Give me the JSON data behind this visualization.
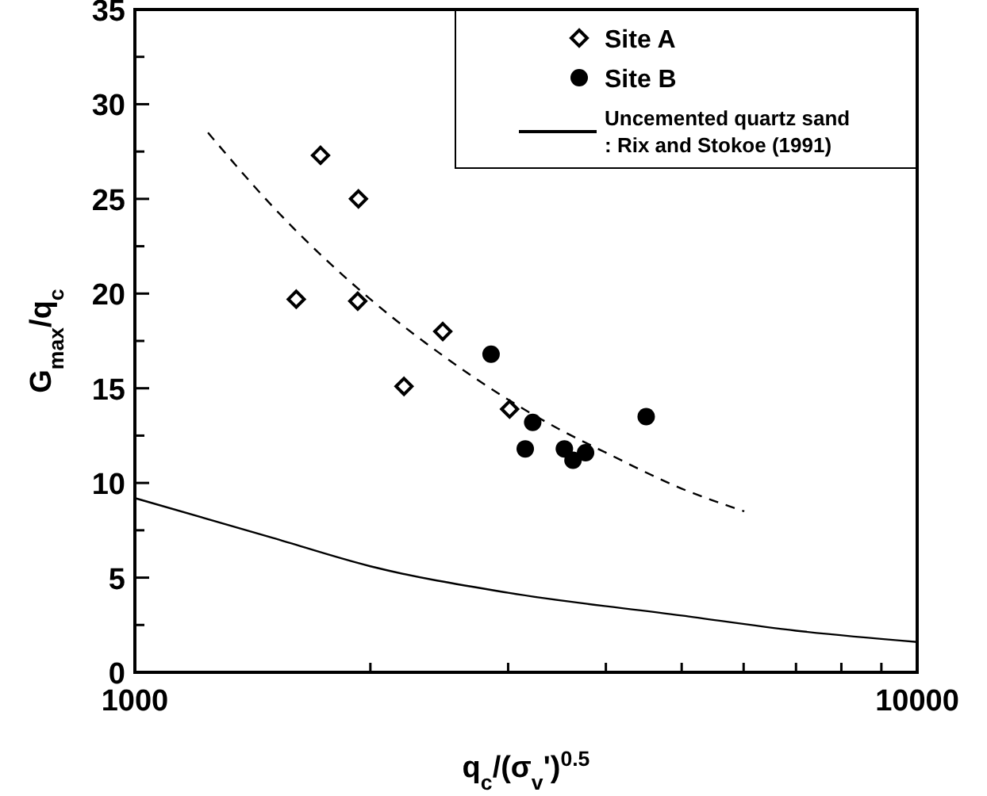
{
  "chart_data": {
    "type": "scatter",
    "xlabel": "q$_{c}$/(σ$_{v}$')$^{0.5}$",
    "ylabel": "G$_{max}$/q$_{c}$",
    "log": "x",
    "xlim": [
      1000,
      10000
    ],
    "ylim": [
      0,
      35
    ],
    "xticks": [
      1000,
      {
        "value": 2000,
        "label": null
      },
      {
        "value": 3000,
        "label": null
      },
      {
        "value": 4000,
        "label": null
      },
      {
        "value": 5000,
        "label": null
      },
      {
        "value": 6000,
        "label": null
      },
      {
        "value": 7000,
        "label": null
      },
      {
        "value": 8000,
        "label": null
      },
      {
        "value": 9000,
        "label": null
      },
      10000
    ],
    "yticks": [
      0,
      {
        "value": 2.5,
        "label": null
      },
      5,
      {
        "value": 7.5,
        "label": null
      },
      10,
      {
        "value": 12.5,
        "label": null
      },
      15,
      {
        "value": 17.5,
        "label": null
      },
      20,
      {
        "value": 22.5,
        "label": null
      },
      25,
      {
        "value": 27.5,
        "label": null
      },
      30,
      {
        "value": 32.5,
        "label": null
      },
      35
    ],
    "grid": false,
    "legend": "top right",
    "series": [
      {
        "name": "Site A",
        "marker": "diamond",
        "color": "#000000",
        "x": [
          1608,
          1727,
          1931,
          1927,
          2208,
          2475,
          3013
        ],
        "values": [
          19.7,
          27.3,
          25,
          19.6,
          15.1,
          18,
          13.9
        ]
      },
      {
        "name": "Site B",
        "marker": "circle",
        "color": "#000000",
        "x": [
          2853,
          3225,
          3155,
          3540,
          3631,
          3768,
          4504
        ],
        "values": [
          16.8,
          13.2,
          11.8,
          11.8,
          11.2,
          11.6,
          13.5
        ]
      },
      {
        "name": "Uncemented quartz sand\n: Rix and Stokoe (1991)",
        "type": "line",
        "line_style": "solid",
        "color": "#000000",
        "x": [
          1000,
          1500,
          2000,
          3000,
          5000,
          7000,
          10000
        ],
        "values": [
          9.2,
          7.1,
          5.6,
          4.2,
          3.0,
          2.2,
          1.6
        ]
      },
      {
        "type": "line",
        "line_style": "dashed",
        "color": "#000000",
        "x": [
          1240,
          1500,
          2000,
          2500,
          3000,
          3500,
          4000,
          5000,
          6012
        ],
        "values": [
          28.5,
          24.6,
          19.7,
          16.6,
          14.4,
          12.8,
          11.6,
          9.7,
          8.5
        ]
      }
    ]
  }
}
